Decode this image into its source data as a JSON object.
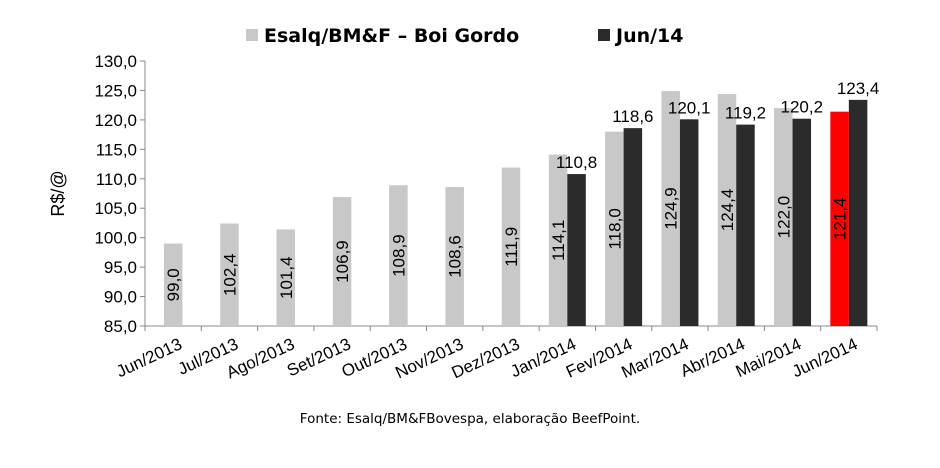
{
  "chart_data": {
    "type": "bar",
    "categories": [
      "Jun/2013",
      "Jul/2013",
      "Ago/2013",
      "Set/2013",
      "Out/2013",
      "Nov/2013",
      "Dez/2013",
      "Jan/2014",
      "Fev/2014",
      "Mar/2014",
      "Abr/2014",
      "Mai/2014",
      "Jun/2014"
    ],
    "series": [
      {
        "name": "Esalq/BM&F – Boi Gordo",
        "color": "#c8c8c8",
        "values": [
          99.0,
          102.4,
          101.4,
          106.9,
          108.9,
          108.6,
          111.9,
          114.1,
          118.0,
          124.9,
          124.4,
          122.0,
          121.4
        ],
        "labels": [
          "99,0",
          "102,4",
          "101,4",
          "106,9",
          "108,9",
          "108,6",
          "111,9",
          "114,1",
          "118,0",
          "124,9",
          "124,4",
          "122,0",
          "121,4"
        ],
        "highlight": {
          "category": "Jun/2014",
          "color": "#ff0000"
        }
      },
      {
        "name": "Jun/14",
        "color": "#2b2b2b",
        "values": [
          null,
          null,
          null,
          null,
          null,
          null,
          null,
          110.8,
          118.6,
          120.1,
          119.2,
          120.2,
          123.4
        ],
        "labels": [
          "",
          "",
          "",
          "",
          "",
          "",
          "",
          "110,8",
          "118,6",
          "120,1",
          "119,2",
          "120,2",
          "123,4"
        ]
      }
    ],
    "ylabel": "R$/@",
    "ylim": [
      85,
      130
    ],
    "yticks": [
      "85,0",
      "90,0",
      "95,0",
      "100,0",
      "105,0",
      "110,0",
      "115,0",
      "120,0",
      "125,0",
      "130,0"
    ],
    "legend_position": "top",
    "grid": false
  },
  "source_note": "Fonte: Esalq/BM&FBovespa, elaboração BeefPoint."
}
